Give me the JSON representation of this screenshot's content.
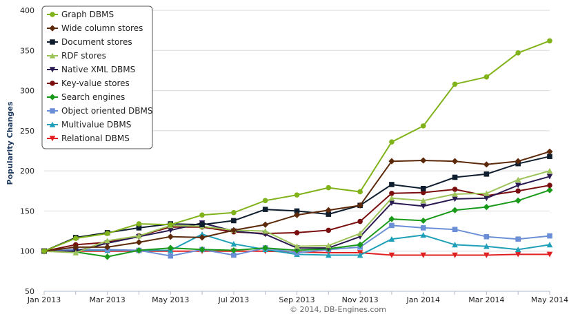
{
  "chart_data": {
    "type": "line",
    "ylabel": "Popularity Changes",
    "ylim": [
      50,
      400
    ],
    "yticks": [
      50,
      100,
      150,
      200,
      250,
      300,
      350,
      400
    ],
    "x": [
      "Jan 2013",
      "Feb 2013",
      "Mar 2013",
      "Apr 2013",
      "May 2013",
      "Jun 2013",
      "Jul 2013",
      "Aug 2013",
      "Sep 2013",
      "Oct 2013",
      "Nov 2013",
      "Dec 2013",
      "Jan 2014",
      "Feb 2014",
      "Mar 2014",
      "Apr 2014",
      "May 2014"
    ],
    "xtick_labels": [
      "Jan 2013",
      "Mar 2013",
      "May 2013",
      "Jul 2013",
      "Sep 2013",
      "Nov 2013",
      "Jan 2014",
      "Mar 2014",
      "May 2014"
    ],
    "grid": "horizontal",
    "legend": "top-left",
    "credit": "© 2014, DB-Engines.com",
    "series": [
      {
        "name": "Graph DBMS",
        "color": "#80b219",
        "marker": "circle",
        "values": [
          100,
          116,
          122,
          134,
          133,
          145,
          148,
          163,
          170,
          179,
          174,
          236,
          256,
          308,
          317,
          347,
          362
        ]
      },
      {
        "name": "Wide column stores",
        "color": "#5c2a0a",
        "marker": "diamond",
        "values": [
          100,
          105,
          105,
          111,
          118,
          117,
          126,
          133,
          145,
          151,
          157,
          212,
          213,
          212,
          208,
          212,
          224
        ]
      },
      {
        "name": "Document stores",
        "color": "#0f1e2e",
        "marker": "square",
        "values": [
          100,
          117,
          123,
          129,
          134,
          133,
          138,
          152,
          150,
          146,
          157,
          183,
          178,
          192,
          196,
          209,
          218
        ]
      },
      {
        "name": "RDF stores",
        "color": "#9dc35a",
        "marker": "triangle",
        "values": [
          100,
          98,
          113,
          119,
          132,
          131,
          126,
          125,
          106,
          107,
          122,
          166,
          163,
          171,
          172,
          189,
          200
        ]
      },
      {
        "name": "Native XML DBMS",
        "color": "#2b1a52",
        "marker": "triangle-down",
        "values": [
          100,
          100,
          110,
          118,
          126,
          135,
          125,
          121,
          104,
          104,
          118,
          160,
          156,
          165,
          166,
          182,
          193
        ]
      },
      {
        "name": "Key-value stores",
        "color": "#7a0e0e",
        "marker": "circle",
        "values": [
          100,
          108,
          111,
          119,
          130,
          130,
          124,
          122,
          123,
          126,
          137,
          172,
          173,
          177,
          169,
          175,
          182
        ]
      },
      {
        "name": "Search engines",
        "color": "#1a9a1a",
        "marker": "diamond",
        "values": [
          100,
          99,
          93,
          101,
          104,
          102,
          101,
          104,
          101,
          103,
          108,
          140,
          138,
          151,
          155,
          163,
          176
        ]
      },
      {
        "name": "Object oriented DBMS",
        "color": "#6b8fd6",
        "marker": "square",
        "values": [
          100,
          102,
          102,
          101,
          94,
          102,
          95,
          104,
          98,
          102,
          105,
          132,
          129,
          127,
          118,
          115,
          119
        ]
      },
      {
        "name": "Multivalue DBMS",
        "color": "#1fa0b8",
        "marker": "triangle",
        "values": [
          100,
          101,
          101,
          101,
          101,
          121,
          109,
          102,
          96,
          95,
          95,
          115,
          120,
          108,
          106,
          102,
          108
        ]
      },
      {
        "name": "Relational DBMS",
        "color": "#e02020",
        "marker": "triangle-down",
        "values": [
          100,
          100,
          100,
          100,
          100,
          100,
          100,
          100,
          99,
          98,
          98,
          95,
          95,
          95,
          95,
          96,
          96
        ]
      }
    ]
  }
}
